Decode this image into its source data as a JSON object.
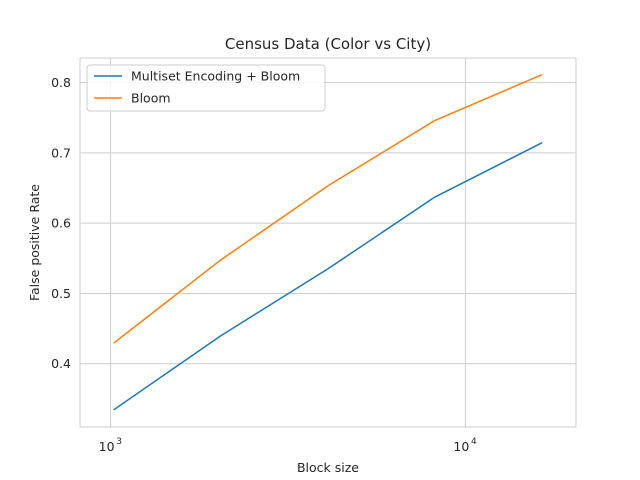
{
  "chart_data": {
    "type": "line",
    "title": "Census Data (Color vs City)",
    "xlabel": "Block size",
    "ylabel": "False positive Rate",
    "x_scale": "log",
    "x": [
      1024,
      2048,
      4096,
      8192,
      16384
    ],
    "xlim": [
      820,
      20500
    ],
    "ylim": [
      0.31,
      0.835
    ],
    "x_ticks": [
      {
        "value": 1000,
        "base": "10",
        "exp": "3"
      },
      {
        "value": 10000,
        "base": "10",
        "exp": "4"
      }
    ],
    "y_ticks": [
      0.4,
      0.5,
      0.6,
      0.7,
      0.8
    ],
    "y_tick_labels": [
      "0.4",
      "0.5",
      "0.6",
      "0.7",
      "0.8"
    ],
    "grid": true,
    "legend_position": "top-left",
    "series": [
      {
        "name": "Multiset Encoding + Bloom",
        "color": "#1f77b4",
        "values": [
          0.335,
          0.44,
          0.535,
          0.637,
          0.714
        ]
      },
      {
        "name": "Bloom",
        "color": "#ff7f0e",
        "values": [
          0.43,
          0.548,
          0.653,
          0.746,
          0.811
        ]
      }
    ]
  }
}
